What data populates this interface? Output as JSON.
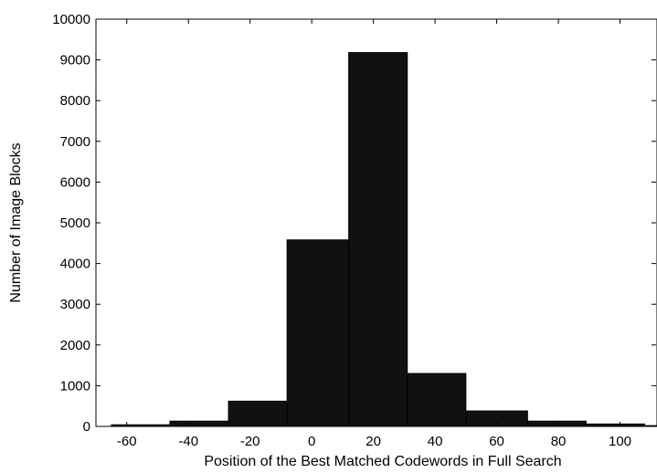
{
  "chart_data": {
    "type": "bar",
    "subtype": "histogram",
    "xlabel": "Position of the Best Matched Codewords in Full Search",
    "ylabel": "Number of Image Blocks",
    "xlim": [
      -70,
      112
    ],
    "ylim": [
      0,
      10000
    ],
    "x_ticks": [
      -60,
      -40,
      -20,
      0,
      20,
      40,
      60,
      80,
      100
    ],
    "y_ticks": [
      0,
      1000,
      2000,
      3000,
      4000,
      5000,
      6000,
      7000,
      8000,
      9000,
      10000
    ],
    "x_tick_labels": [
      "-60",
      "-40",
      "-20",
      "0",
      "20",
      "40",
      "60",
      "80",
      "100"
    ],
    "y_tick_labels": [
      "0",
      "1000",
      "2000",
      "3000",
      "4000",
      "5000",
      "6000",
      "7000",
      "8000",
      "9000",
      "10000"
    ],
    "bins": [
      {
        "x0": -65,
        "x1": -46,
        "value": 40
      },
      {
        "x0": -46,
        "x1": -27,
        "value": 130
      },
      {
        "x0": -27,
        "x1": -8,
        "value": 620
      },
      {
        "x0": -8,
        "x1": 12,
        "value": 4580
      },
      {
        "x0": 12,
        "x1": 31,
        "value": 9180
      },
      {
        "x0": 31,
        "x1": 50,
        "value": 1300
      },
      {
        "x0": 50,
        "x1": 70,
        "value": 380
      },
      {
        "x0": 70,
        "x1": 89,
        "value": 130
      },
      {
        "x0": 89,
        "x1": 108,
        "value": 60
      },
      {
        "x0": 108,
        "x1": 112,
        "value": 20
      }
    ],
    "bar_color": "#111111",
    "bar_edge_color": "#000000",
    "grid": false
  }
}
